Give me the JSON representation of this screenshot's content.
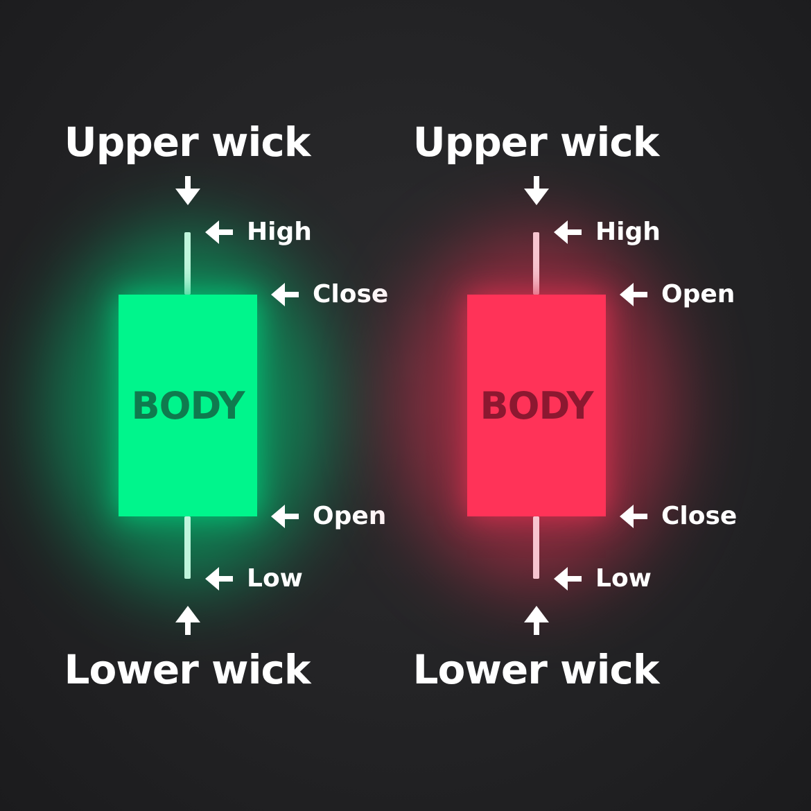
{
  "colors": {
    "background": "#232325",
    "text": "#ffffff",
    "bull_body": "#00f58c",
    "bull_body_text": "#0f7a4e",
    "bull_glow": "#00c878",
    "bull_wick": "#bff5dc",
    "bear_body": "#ff3358",
    "bear_body_text": "#8c1830",
    "bear_glow": "#d9304f",
    "bear_wick": "#f7c4cf"
  },
  "candles": [
    {
      "id": "bullish",
      "upper_title": "Upper wick",
      "lower_title": "Lower wick",
      "body_text": "BODY",
      "high_label": "High",
      "top_label": "Close",
      "bottom_label": "Open",
      "low_label": "Low",
      "upper_arrow_icon": "arrow-down-icon",
      "lower_arrow_icon": "arrow-up-icon",
      "pointer_icon": "arrow-left-icon"
    },
    {
      "id": "bearish",
      "upper_title": "Upper wick",
      "lower_title": "Lower wick",
      "body_text": "BODY",
      "high_label": "High",
      "top_label": "Open",
      "bottom_label": "Close",
      "low_label": "Low",
      "upper_arrow_icon": "arrow-down-icon",
      "lower_arrow_icon": "arrow-up-icon",
      "pointer_icon": "arrow-left-icon"
    }
  ]
}
